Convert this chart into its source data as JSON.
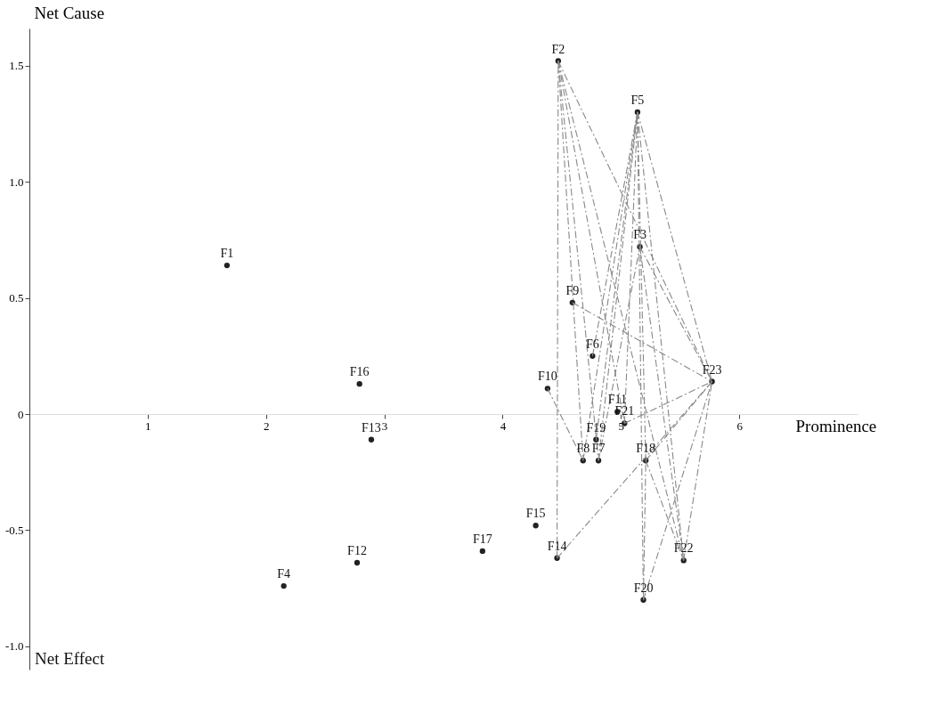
{
  "chart_data": {
    "type": "scatter",
    "xlabel": "Prominence",
    "ylabel": "Net Cause",
    "annotations": [
      "Net Effect"
    ],
    "xlim": [
      0,
      7.0
    ],
    "ylim": [
      -1.1,
      1.66
    ],
    "xticks": [
      1,
      2,
      3,
      4,
      5,
      6
    ],
    "yticks": [
      {
        "value": -1.0,
        "label": "-1.0"
      },
      {
        "value": -0.5,
        "label": "-0.5"
      },
      0,
      {
        "value": 0.5,
        "label": "0.5"
      },
      {
        "value": 1.0,
        "label": "1.0"
      },
      {
        "value": 1.5,
        "label": "1.5"
      }
    ],
    "grid": false,
    "series": [
      {
        "type": "scatter",
        "color": "#222222",
        "marker": "circle",
        "x": [
          1.67,
          4.47,
          5.16,
          2.15,
          5.14,
          4.76,
          4.81,
          4.68,
          4.59,
          4.38,
          4.97,
          2.77,
          2.89,
          4.46,
          4.28,
          2.79,
          3.83,
          5.21,
          4.79,
          5.19,
          5.03,
          5.53,
          5.77
        ],
        "values": [
          0.64,
          1.52,
          0.72,
          -0.74,
          1.3,
          0.25,
          -0.2,
          -0.2,
          0.48,
          0.11,
          0.01,
          -0.64,
          -0.11,
          -0.62,
          -0.48,
          0.13,
          -0.59,
          -0.2,
          -0.11,
          -0.8,
          -0.04,
          -0.63,
          0.14
        ],
        "value_labels": [
          "F1",
          "F2",
          "F3",
          "F4",
          "F5",
          "F6",
          "F7",
          "F8",
          "F9",
          "F10",
          "F11",
          "F12",
          "F13",
          "F14",
          "F15",
          "F16",
          "F17",
          "F18",
          "F19",
          "F20",
          "F21",
          "F22",
          "F23"
        ]
      },
      {
        "type": "line",
        "line_style": "dashed",
        "color": "#888888",
        "x": [
          4.47,
          4.46
        ],
        "values": [
          1.52,
          -0.62
        ]
      },
      {
        "type": "line",
        "line_style": "dashed",
        "color": "#888888",
        "x": [
          4.47,
          4.68
        ],
        "values": [
          1.52,
          -0.2
        ]
      },
      {
        "type": "line",
        "line_style": "dashed",
        "color": "#888888",
        "x": [
          4.47,
          4.81
        ],
        "values": [
          1.52,
          -0.2
        ]
      },
      {
        "type": "line",
        "line_style": "dashed",
        "color": "#888888",
        "x": [
          4.47,
          5.03
        ],
        "values": [
          1.52,
          -0.04
        ]
      },
      {
        "type": "line",
        "line_style": "dashed",
        "color": "#888888",
        "x": [
          4.47,
          5.77
        ],
        "values": [
          1.52,
          0.14
        ]
      },
      {
        "type": "line",
        "line_style": "dashed",
        "color": "#888888",
        "x": [
          4.47,
          5.53
        ],
        "values": [
          1.52,
          -0.63
        ]
      },
      {
        "type": "line",
        "line_style": "dashed",
        "color": "#888888",
        "x": [
          5.14,
          4.68
        ],
        "values": [
          1.3,
          -0.2
        ]
      },
      {
        "type": "line",
        "line_style": "dashed",
        "color": "#888888",
        "x": [
          5.14,
          4.79
        ],
        "values": [
          1.3,
          -0.11
        ]
      },
      {
        "type": "line",
        "line_style": "dashed",
        "color": "#888888",
        "x": [
          5.14,
          4.76
        ],
        "values": [
          1.3,
          0.25
        ]
      },
      {
        "type": "line",
        "line_style": "dashed",
        "color": "#888888",
        "x": [
          5.14,
          4.81
        ],
        "values": [
          1.3,
          -0.2
        ]
      },
      {
        "type": "line",
        "line_style": "dashed",
        "color": "#888888",
        "x": [
          5.14,
          5.03
        ],
        "values": [
          1.3,
          -0.04
        ]
      },
      {
        "type": "line",
        "line_style": "dashed",
        "color": "#888888",
        "x": [
          5.14,
          5.77
        ],
        "values": [
          1.3,
          0.14
        ]
      },
      {
        "type": "line",
        "line_style": "dashed",
        "color": "#888888",
        "x": [
          5.14,
          5.53
        ],
        "values": [
          1.3,
          -0.63
        ]
      },
      {
        "type": "line",
        "line_style": "dashed",
        "color": "#888888",
        "x": [
          5.14,
          5.19
        ],
        "values": [
          1.3,
          -0.8
        ]
      },
      {
        "type": "line",
        "line_style": "dashed",
        "color": "#888888",
        "x": [
          5.14,
          5.21
        ],
        "values": [
          1.3,
          -0.2
        ]
      },
      {
        "type": "line",
        "line_style": "dashed",
        "color": "#888888",
        "x": [
          5.16,
          5.77
        ],
        "values": [
          0.72,
          0.14
        ]
      },
      {
        "type": "line",
        "line_style": "dashed",
        "color": "#888888",
        "x": [
          5.16,
          5.53
        ],
        "values": [
          0.72,
          -0.63
        ]
      },
      {
        "type": "line",
        "line_style": "dashed",
        "color": "#888888",
        "x": [
          5.16,
          4.81
        ],
        "values": [
          0.72,
          -0.2
        ]
      },
      {
        "type": "line",
        "line_style": "dashed",
        "color": "#888888",
        "x": [
          4.59,
          5.77
        ],
        "values": [
          0.48,
          0.14
        ]
      },
      {
        "type": "line",
        "line_style": "dashed",
        "color": "#888888",
        "x": [
          5.77,
          5.03
        ],
        "values": [
          0.14,
          -0.04
        ]
      },
      {
        "type": "line",
        "line_style": "dashed",
        "color": "#888888",
        "x": [
          5.77,
          5.21
        ],
        "values": [
          0.14,
          -0.2
        ]
      },
      {
        "type": "line",
        "line_style": "dashed",
        "color": "#888888",
        "x": [
          5.77,
          5.53
        ],
        "values": [
          0.14,
          -0.63
        ]
      },
      {
        "type": "line",
        "line_style": "dashed",
        "color": "#888888",
        "x": [
          5.77,
          5.19
        ],
        "values": [
          0.14,
          -0.8
        ]
      },
      {
        "type": "line",
        "line_style": "dashed",
        "color": "#888888",
        "x": [
          5.77,
          4.46
        ],
        "values": [
          0.14,
          -0.62
        ]
      },
      {
        "type": "line",
        "line_style": "dashed",
        "color": "#888888",
        "x": [
          4.38,
          4.68
        ],
        "values": [
          0.11,
          -0.2
        ]
      },
      {
        "type": "line",
        "line_style": "dashed",
        "color": "#888888",
        "x": [
          5.21,
          5.19
        ],
        "values": [
          -0.2,
          -0.8
        ]
      },
      {
        "type": "line",
        "line_style": "dashed",
        "color": "#888888",
        "x": [
          5.21,
          5.53
        ],
        "values": [
          -0.2,
          -0.63
        ]
      }
    ]
  }
}
